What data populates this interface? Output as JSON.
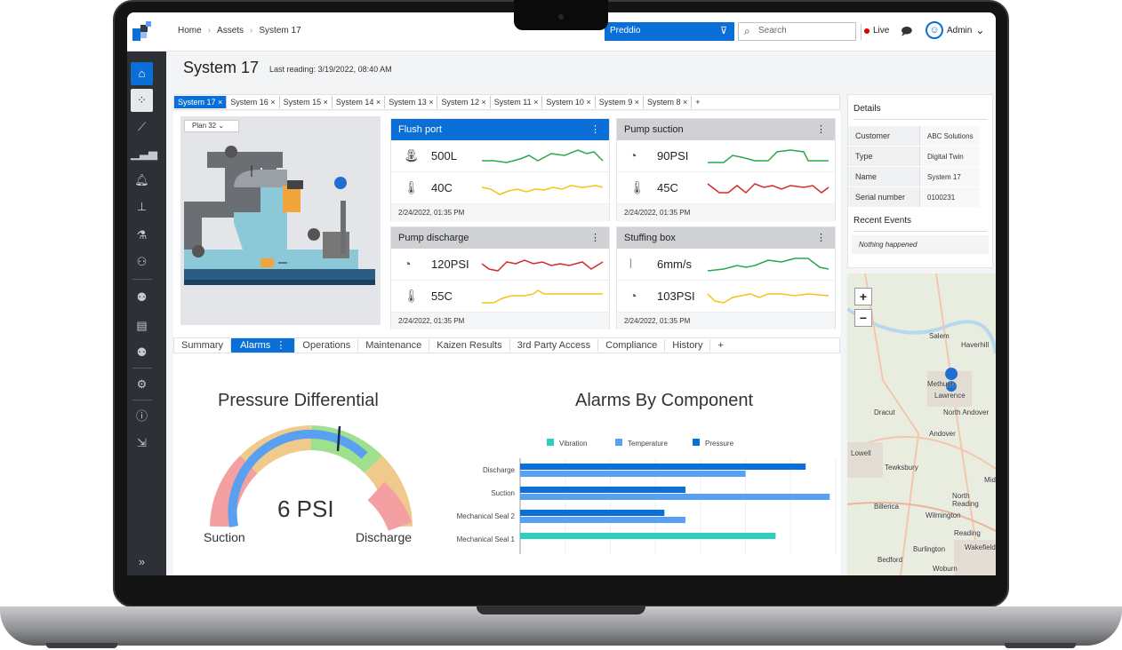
{
  "breadcrumb": [
    "Home",
    "Assets",
    "System 17"
  ],
  "project_selector": "Preddio",
  "search": {
    "placeholder": "Search"
  },
  "live_label": "Live",
  "user": {
    "name": "Admin"
  },
  "page": {
    "title": "System 17",
    "last_reading": "Last reading: 3/19/2022, 08:40 AM"
  },
  "system_tabs": [
    "System 17",
    "System 16",
    "System 15",
    "System 14",
    "System 13",
    "System 12",
    "System 11",
    "System 10",
    "System 9",
    "System 8"
  ],
  "system_tabs_add": "+",
  "plan_selector": "Plan 32",
  "cards": [
    {
      "title": "Flush port",
      "active": true,
      "metrics": [
        {
          "icon": "faucet-icon",
          "value": "500L",
          "color": "#2aa84a"
        },
        {
          "icon": "thermometer-icon",
          "value": "40C",
          "color": "#f2c417"
        }
      ],
      "timestamp": "2/24/2022, 01:35 PM"
    },
    {
      "title": "Pump suction",
      "active": false,
      "metrics": [
        {
          "icon": "gauge-icon",
          "value": "90PSI",
          "color": "#2aa84a"
        },
        {
          "icon": "thermometer-icon",
          "value": "45C",
          "color": "#d62b2b"
        }
      ],
      "timestamp": "2/24/2022, 01:35 PM"
    },
    {
      "title": "Pump discharge",
      "active": false,
      "metrics": [
        {
          "icon": "gauge-icon",
          "value": "120PSI",
          "color": "#d62b2b"
        },
        {
          "icon": "thermometer-icon",
          "value": "55C",
          "color": "#f2c417"
        }
      ],
      "timestamp": "2/24/2022, 01:35 PM"
    },
    {
      "title": "Stuffing box",
      "active": false,
      "metrics": [
        {
          "icon": "vibration-icon",
          "value": "6mm/s",
          "color": "#2aa84a"
        },
        {
          "icon": "gauge-icon",
          "value": "103PSI",
          "color": "#f2c417"
        }
      ],
      "timestamp": "2/24/2022, 01:35 PM"
    }
  ],
  "bottom_tabs": [
    "Summary",
    "Alarms",
    "Operations",
    "Maintenance",
    "Kaizen Results",
    "3rd Party Access",
    "Compliance",
    "History"
  ],
  "bottom_tabs_add": "+",
  "gauge": {
    "title": "Pressure Differential",
    "value_text": "6 PSI",
    "left_label": "Suction",
    "right_label": "Discharge"
  },
  "chart_data": {
    "type": "bar",
    "orientation": "horizontal",
    "title": "Alarms By Component",
    "categories": [
      "Discharge",
      "Suction",
      "Mechanical Seal 2",
      "Mechanical Seal 1"
    ],
    "series": [
      {
        "name": "Vibration",
        "color": "#2ecfc0",
        "values": [
          0,
          0,
          0,
          8.5
        ]
      },
      {
        "name": "Temperature",
        "color": "#5aa0f0",
        "values": [
          7.5,
          10.3,
          5.5,
          0
        ]
      },
      {
        "name": "Pressure",
        "color": "#0a6fd6",
        "values": [
          9.5,
          5.5,
          4.8,
          0
        ]
      }
    ],
    "xlim": [
      0,
      10.5
    ],
    "legend": "top",
    "grid": true
  },
  "details": {
    "title": "Details",
    "rows": [
      {
        "key": "Customer",
        "value": "ABC Solutions"
      },
      {
        "key": "Type",
        "value": "Digital Twin"
      },
      {
        "key": "Name",
        "value": "System 17"
      },
      {
        "key": "Serial number",
        "value": "0100231"
      }
    ],
    "recent_title": "Recent Events",
    "recent_empty": "Nothing happened"
  },
  "map": {
    "zoom_in": "+",
    "zoom_out": "−",
    "places": [
      "Salem",
      "Haverhill",
      "Methuen",
      "Lawrence",
      "Dracut",
      "North Andover",
      "Andover",
      "Lowell",
      "Tewksbury",
      "North Reading",
      "Billerica",
      "Wilmington",
      "Reading",
      "Burlington",
      "Wakefield",
      "Bedford",
      "Woburn",
      "Mid"
    ]
  }
}
